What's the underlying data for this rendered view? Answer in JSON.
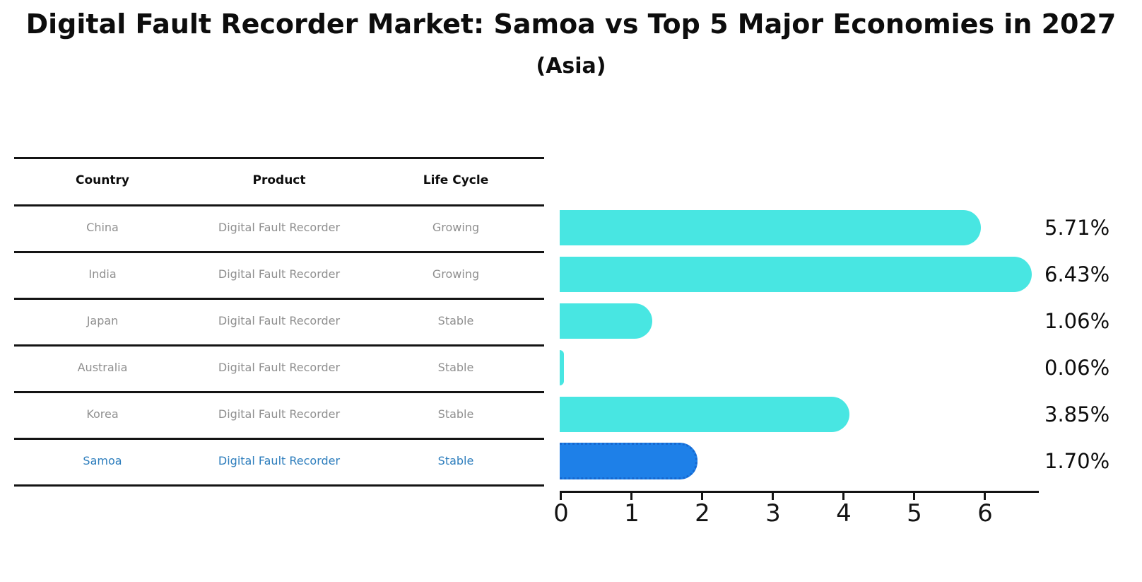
{
  "title": "Digital Fault Recorder Market: Samoa vs Top 5 Major Economies in 2027",
  "subtitle": "(Asia)",
  "table": {
    "headers": [
      "Country",
      "Product",
      "Life Cycle"
    ],
    "rows": [
      {
        "country": "China",
        "product": "Digital Fault Recorder",
        "life_cycle": "Growing",
        "highlighted": false
      },
      {
        "country": "India",
        "product": "Digital Fault Recorder",
        "life_cycle": "Growing",
        "highlighted": false
      },
      {
        "country": "Japan",
        "product": "Digital Fault Recorder",
        "life_cycle": "Stable",
        "highlighted": false
      },
      {
        "country": "Australia",
        "product": "Digital Fault Recorder",
        "life_cycle": "Stable",
        "highlighted": false
      },
      {
        "country": "Korea",
        "product": "Digital Fault Recorder",
        "life_cycle": "Stable",
        "highlighted": false
      },
      {
        "country": "Samoa",
        "product": "Digital Fault Recorder",
        "life_cycle": "Stable",
        "highlighted": true
      }
    ]
  },
  "chart_data": {
    "type": "bar",
    "orientation": "horizontal",
    "title": "Digital Fault Recorder Market: Samoa vs Top 5 Major Economies in 2027",
    "subtitle": "(Asia)",
    "categories": [
      "China",
      "India",
      "Japan",
      "Australia",
      "Korea",
      "Samoa"
    ],
    "values": [
      5.71,
      6.43,
      1.06,
      0.06,
      3.85,
      1.7
    ],
    "value_labels": [
      "5.71%",
      "6.43%",
      "1.06%",
      "0.06%",
      "3.85%",
      "1.70%"
    ],
    "x_ticks": [
      "0",
      "1",
      "2",
      "3",
      "4",
      "5",
      "6"
    ],
    "xlim": [
      0,
      6.77
    ],
    "grid": false,
    "legend": "none",
    "highlight_index": 5,
    "bar_color": "#48E6E2",
    "highlight_bar_color": "#1E80E8",
    "highlight_border_color": "#1668D0",
    "highlight_text_color": "#2E7EBD"
  }
}
